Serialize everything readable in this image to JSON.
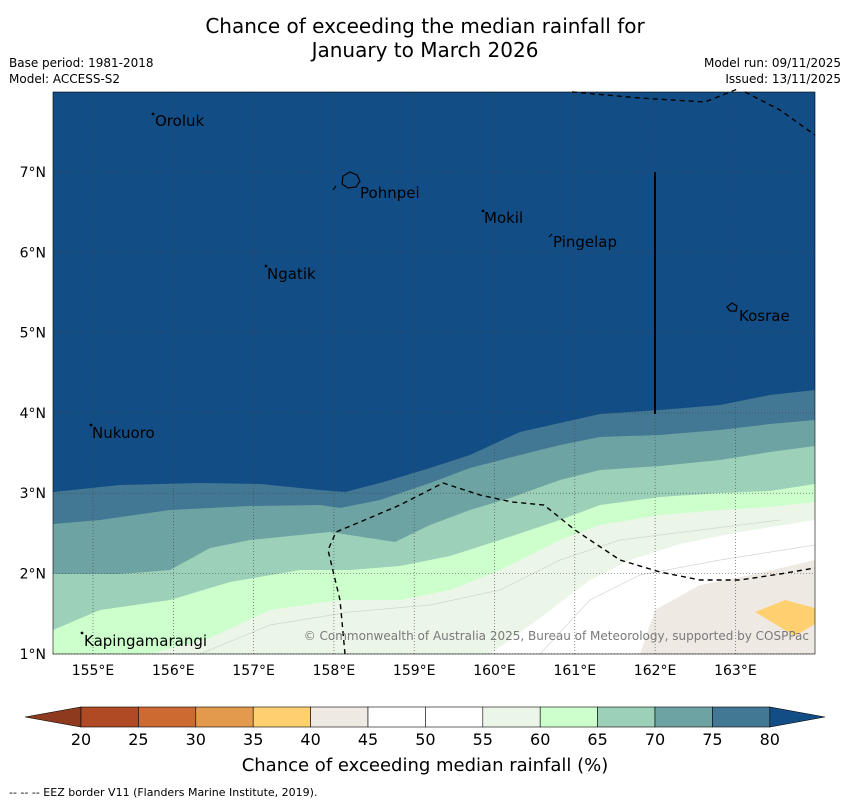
{
  "title": {
    "line1": "Chance of exceeding the median rainfall for",
    "line2": "January to March 2026"
  },
  "meta": {
    "base_period": "Base period: 1981-2018",
    "model": "Model: ACCESS-S2",
    "model_run": "Model run: 09/11/2025",
    "issued": "Issued: 13/11/2025"
  },
  "map": {
    "lon_ticks": [
      "155°E",
      "156°E",
      "157°E",
      "158°E",
      "159°E",
      "160°E",
      "161°E",
      "162°E",
      "163°E"
    ],
    "lat_ticks": [
      "7°N",
      "6°N",
      "5°N",
      "4°N",
      "3°N",
      "2°N",
      "1°N"
    ],
    "places": [
      {
        "name": "Oroluk"
      },
      {
        "name": "Pohnpei"
      },
      {
        "name": "Mokil"
      },
      {
        "name": "Pingelap"
      },
      {
        "name": "Ngatik"
      },
      {
        "name": "Kosrae"
      },
      {
        "name": "Nukuoro"
      },
      {
        "name": "Kapingamarangi"
      }
    ],
    "copyright": "© Commonwealth of Australia 2025, Bureau of Meteorology, supported by COSPPac"
  },
  "colorbar": {
    "ticks": [
      "20",
      "25",
      "30",
      "35",
      "40",
      "45",
      "50",
      "55",
      "60",
      "65",
      "70",
      "75",
      "80"
    ],
    "colors": [
      "#b04a25",
      "#cc6a32",
      "#e39a4d",
      "#ffd070",
      "#efe9e4",
      "#ffffff",
      "#ffffff",
      "#ebf5e8",
      "#ccffcc",
      "#9dd0b8",
      "#6ea3a3",
      "#437894"
    ],
    "under_color": "#8e3a1e",
    "over_color": "#134d85",
    "label": "Chance of exceeding median rainfall (%)"
  },
  "footnote": "--  --  -- EEZ border V11 (Flanders Marine Institute, 2019)."
}
